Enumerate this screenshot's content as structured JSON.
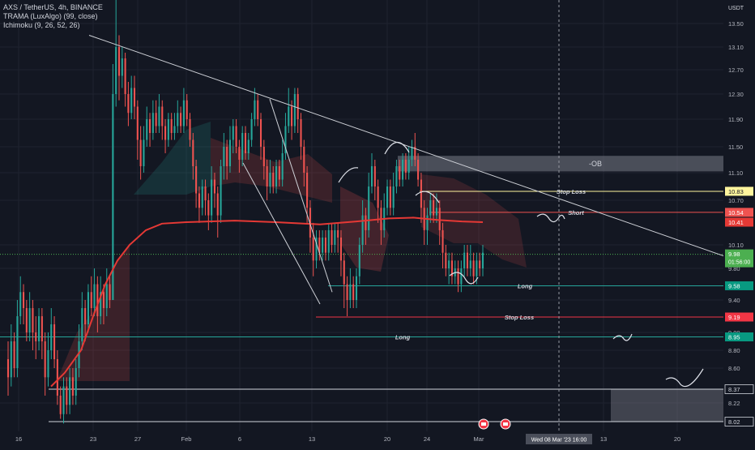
{
  "legend": {
    "symbol": "AXS / TetherUS, 4h, BINANCE",
    "indicator1": "TRAMA (LuxAlgo) (99, close)",
    "indicator2": "Ichimoku (9, 26, 52, 26)"
  },
  "colors": {
    "background": "#131722",
    "up": "#26a69a",
    "down": "#ef5350",
    "trama": "#e53935",
    "grid": "#1f2330",
    "trendline": "#cfd2d8"
  },
  "chart_data": {
    "type": "candlestick",
    "title": "AXS / TetherUS, 4h, BINANCE",
    "currency": "USDT",
    "ylim": [
      7.95,
      13.9
    ],
    "y_ticks": [
      13.5,
      13.1,
      12.7,
      12.3,
      11.9,
      11.5,
      11.1,
      10.7,
      10.1,
      9.8,
      9.4,
      9.0,
      8.8,
      8.6,
      8.22
    ],
    "x_ticks": [
      "16",
      "23",
      "27",
      "Feb",
      "6",
      "13",
      "20",
      "24",
      "Mar",
      "13",
      "20"
    ],
    "crosshair_date": "Wed 08 Mar '23   16:00",
    "price_badges": [
      {
        "value": "10.83",
        "kind": "stop",
        "color": "#fff59d",
        "text_color": "#131722"
      },
      {
        "value": "10.54",
        "kind": "short",
        "color": "#ef5350",
        "text_color": "#ffffff"
      },
      {
        "value": "10.41",
        "kind": "trama",
        "color": "#e53935",
        "text_color": "#ffffff"
      },
      {
        "value": "9.98",
        "kind": "last",
        "color": "#4caf50",
        "text_color": "#ffffff",
        "sub": "01:56:00"
      },
      {
        "value": "9.58",
        "kind": "long",
        "color": "#089981",
        "text_color": "#ffffff"
      },
      {
        "value": "9.19",
        "kind": "stop",
        "color": "#f23645",
        "text_color": "#ffffff"
      },
      {
        "value": "8.95",
        "kind": "long",
        "color": "#089981",
        "text_color": "#ffffff"
      },
      {
        "value": "8.37",
        "kind": "zone",
        "color": "#131722",
        "text_color": "#d1d4dc"
      },
      {
        "value": "8.02",
        "kind": "zone",
        "color": "#131722",
        "text_color": "#d1d4dc"
      }
    ],
    "annotations": [
      {
        "text": "-OB",
        "price": 11.24
      },
      {
        "text": "Stop Loss",
        "price": 10.83
      },
      {
        "text": "Short",
        "price": 10.54
      },
      {
        "text": "Long",
        "price": 9.58
      },
      {
        "text": "Stop Loss",
        "price": 9.19
      },
      {
        "text": "Long",
        "price": 8.95
      }
    ],
    "candles": [
      [
        8.7,
        8.5,
        8.9,
        8.3
      ],
      [
        8.5,
        8.9,
        9.1,
        8.4
      ],
      [
        8.9,
        8.6,
        9.0,
        8.5
      ],
      [
        8.6,
        9.2,
        9.4,
        8.5
      ],
      [
        9.2,
        9.5,
        9.7,
        9.1
      ],
      [
        9.5,
        9.3,
        9.6,
        9.1
      ],
      [
        9.3,
        9.0,
        9.4,
        8.9
      ],
      [
        9.0,
        9.3,
        9.5,
        8.9
      ],
      [
        9.3,
        9.0,
        9.4,
        8.8
      ],
      [
        9.0,
        8.9,
        9.2,
        8.7
      ],
      [
        8.9,
        9.2,
        9.3,
        8.8
      ],
      [
        9.2,
        8.9,
        9.3,
        8.7
      ],
      [
        8.9,
        8.5,
        9.0,
        8.3
      ],
      [
        8.5,
        8.8,
        9.0,
        8.4
      ],
      [
        8.8,
        9.1,
        9.3,
        8.7
      ],
      [
        9.1,
        8.7,
        9.2,
        8.6
      ],
      [
        8.7,
        8.3,
        8.8,
        8.2
      ],
      [
        8.3,
        8.1,
        8.4,
        8.05
      ],
      [
        8.1,
        8.4,
        8.5,
        8.0
      ],
      [
        8.4,
        8.2,
        8.5,
        8.1
      ],
      [
        8.2,
        8.5,
        8.6,
        8.1
      ],
      [
        8.5,
        8.3,
        8.6,
        8.2
      ],
      [
        8.3,
        8.6,
        8.7,
        8.2
      ],
      [
        8.6,
        8.9,
        9.1,
        8.5
      ],
      [
        8.9,
        9.3,
        9.5,
        8.8
      ],
      [
        9.3,
        9.1,
        9.4,
        8.9
      ],
      [
        9.1,
        9.5,
        9.6,
        9.0
      ],
      [
        9.5,
        9.3,
        9.7,
        9.2
      ],
      [
        9.3,
        9.6,
        9.8,
        9.2
      ],
      [
        9.6,
        9.2,
        9.7,
        9.0
      ],
      [
        9.2,
        9.5,
        9.7,
        9.1
      ],
      [
        9.5,
        9.3,
        9.6,
        9.1
      ],
      [
        9.3,
        9.6,
        9.8,
        9.2
      ],
      [
        9.6,
        9.4,
        9.7,
        9.3
      ],
      [
        9.4,
        12.3,
        12.8,
        9.4
      ],
      [
        12.3,
        13.1,
        13.9,
        12.1
      ],
      [
        13.1,
        12.6,
        13.3,
        12.2
      ],
      [
        12.6,
        12.9,
        13.1,
        12.4
      ],
      [
        12.9,
        12.3,
        13.0,
        12.1
      ],
      [
        12.3,
        12.0,
        12.5,
        11.8
      ],
      [
        12.0,
        12.4,
        12.6,
        11.9
      ],
      [
        12.4,
        12.1,
        12.6,
        11.9
      ],
      [
        12.1,
        11.6,
        12.2,
        11.3
      ],
      [
        11.6,
        11.2,
        11.8,
        11.0
      ],
      [
        11.2,
        11.6,
        11.8,
        11.1
      ],
      [
        11.6,
        11.9,
        12.1,
        11.5
      ],
      [
        11.9,
        11.7,
        12.0,
        11.5
      ],
      [
        11.7,
        12.0,
        12.2,
        11.6
      ],
      [
        12.0,
        11.8,
        12.2,
        11.7
      ],
      [
        11.8,
        12.1,
        12.3,
        11.7
      ],
      [
        12.1,
        11.8,
        12.2,
        11.6
      ],
      [
        11.8,
        11.6,
        11.9,
        11.4
      ],
      [
        11.6,
        11.9,
        12.0,
        11.5
      ],
      [
        11.9,
        11.7,
        12.0,
        11.6
      ],
      [
        11.7,
        11.8,
        12.0,
        11.6
      ],
      [
        11.8,
        12.0,
        12.2,
        11.7
      ],
      [
        12.0,
        11.8,
        12.1,
        11.7
      ],
      [
        11.8,
        12.2,
        12.4,
        11.7
      ],
      [
        12.2,
        11.9,
        12.3,
        11.8
      ],
      [
        11.9,
        11.6,
        12.0,
        11.5
      ],
      [
        11.6,
        11.2,
        11.7,
        11.0
      ],
      [
        11.2,
        10.8,
        11.3,
        10.6
      ],
      [
        10.8,
        10.6,
        10.9,
        10.4
      ],
      [
        10.6,
        10.9,
        11.0,
        10.5
      ],
      [
        10.9,
        10.7,
        11.0,
        10.5
      ],
      [
        10.7,
        10.5,
        10.8,
        10.3
      ],
      [
        10.5,
        11.0,
        11.2,
        10.4
      ],
      [
        11.0,
        10.8,
        11.1,
        10.6
      ],
      [
        10.8,
        10.5,
        10.9,
        10.2
      ],
      [
        10.5,
        11.2,
        11.3,
        10.4
      ],
      [
        11.2,
        11.5,
        11.7,
        11.0
      ],
      [
        11.5,
        11.2,
        11.6,
        11.0
      ],
      [
        11.2,
        11.6,
        11.8,
        11.1
      ],
      [
        11.6,
        11.8,
        11.9,
        11.4
      ],
      [
        11.8,
        11.5,
        11.9,
        11.4
      ],
      [
        11.5,
        11.3,
        11.6,
        11.1
      ],
      [
        11.3,
        11.7,
        11.8,
        11.2
      ],
      [
        11.7,
        11.4,
        11.8,
        11.3
      ],
      [
        11.4,
        11.6,
        11.7,
        11.3
      ],
      [
        11.6,
        11.9,
        12.0,
        11.5
      ],
      [
        11.9,
        12.2,
        12.4,
        11.8
      ],
      [
        12.2,
        11.9,
        12.3,
        11.8
      ],
      [
        11.9,
        11.5,
        12.0,
        11.3
      ],
      [
        11.5,
        11.2,
        11.6,
        11.0
      ],
      [
        11.2,
        10.9,
        11.3,
        10.7
      ],
      [
        10.9,
        11.1,
        11.3,
        10.8
      ],
      [
        11.1,
        10.9,
        11.2,
        10.8
      ],
      [
        10.9,
        11.2,
        11.3,
        10.8
      ],
      [
        11.2,
        11.0,
        11.3,
        10.9
      ],
      [
        11.0,
        11.4,
        11.6,
        10.9
      ],
      [
        11.4,
        11.8,
        12.0,
        11.3
      ],
      [
        11.8,
        12.1,
        12.4,
        11.7
      ],
      [
        12.1,
        11.8,
        12.2,
        11.6
      ],
      [
        11.8,
        12.3,
        12.4,
        11.7
      ],
      [
        12.3,
        11.9,
        12.4,
        11.7
      ],
      [
        11.9,
        11.5,
        12.0,
        11.3
      ],
      [
        11.5,
        11.1,
        11.6,
        10.9
      ],
      [
        11.1,
        10.6,
        11.2,
        10.4
      ],
      [
        10.6,
        10.2,
        10.7,
        10.0
      ],
      [
        10.2,
        9.9,
        10.4,
        9.7
      ],
      [
        9.9,
        10.2,
        10.3,
        9.8
      ],
      [
        10.2,
        10.0,
        10.3,
        9.9
      ],
      [
        10.0,
        10.2,
        10.3,
        9.9
      ],
      [
        10.2,
        10.0,
        10.3,
        9.9
      ],
      [
        10.0,
        10.3,
        10.4,
        9.9
      ],
      [
        10.3,
        10.1,
        10.4,
        10.0
      ],
      [
        10.1,
        10.3,
        10.4,
        10.0
      ],
      [
        10.3,
        10.2,
        10.4,
        10.0
      ],
      [
        10.2,
        9.9,
        10.3,
        9.7
      ],
      [
        9.9,
        9.6,
        10.0,
        9.3
      ],
      [
        9.6,
        9.4,
        9.7,
        9.2
      ],
      [
        9.4,
        9.6,
        9.8,
        9.3
      ],
      [
        9.6,
        9.4,
        9.7,
        9.3
      ],
      [
        9.4,
        9.7,
        9.8,
        9.3
      ],
      [
        9.7,
        10.1,
        10.2,
        9.6
      ],
      [
        10.1,
        10.5,
        10.7,
        10.0
      ],
      [
        10.5,
        10.3,
        10.6,
        10.1
      ],
      [
        10.3,
        10.9,
        11.1,
        10.2
      ],
      [
        10.9,
        11.2,
        11.4,
        10.8
      ],
      [
        11.2,
        10.9,
        11.3,
        10.7
      ],
      [
        10.9,
        10.6,
        11.0,
        10.4
      ],
      [
        10.6,
        10.3,
        10.7,
        10.1
      ],
      [
        10.3,
        10.6,
        10.8,
        10.2
      ],
      [
        10.6,
        10.9,
        11.0,
        10.5
      ],
      [
        10.9,
        10.6,
        11.0,
        10.5
      ],
      [
        10.6,
        10.9,
        11.1,
        10.5
      ],
      [
        10.9,
        11.2,
        11.3,
        10.8
      ],
      [
        11.2,
        11.0,
        11.3,
        10.9
      ],
      [
        11.0,
        11.3,
        11.4,
        10.9
      ],
      [
        11.3,
        11.1,
        11.4,
        11.0
      ],
      [
        11.1,
        11.3,
        11.5,
        11.0
      ],
      [
        11.3,
        11.5,
        11.6,
        11.2
      ],
      [
        11.5,
        11.3,
        11.7,
        11.2
      ],
      [
        11.3,
        11.0,
        11.4,
        10.9
      ],
      [
        11.0,
        10.6,
        11.1,
        10.4
      ],
      [
        10.6,
        10.3,
        10.7,
        10.1
      ],
      [
        10.3,
        10.5,
        10.6,
        10.1
      ],
      [
        10.5,
        10.7,
        10.8,
        10.4
      ],
      [
        10.7,
        10.5,
        10.8,
        10.4
      ],
      [
        10.5,
        10.6,
        10.8,
        10.4
      ],
      [
        10.6,
        10.3,
        10.7,
        10.1
      ],
      [
        10.3,
        10.0,
        10.4,
        9.8
      ],
      [
        10.0,
        9.8,
        10.1,
        9.7
      ],
      [
        9.8,
        9.9,
        10.0,
        9.6
      ],
      [
        9.9,
        9.7,
        10.0,
        9.6
      ],
      [
        9.7,
        9.8,
        9.9,
        9.6
      ],
      [
        9.8,
        9.6,
        9.9,
        9.5
      ],
      [
        9.6,
        9.8,
        9.9,
        9.5
      ],
      [
        9.8,
        10.0,
        10.1,
        9.7
      ],
      [
        10.0,
        9.8,
        10.1,
        9.7
      ],
      [
        9.8,
        9.9,
        10.1,
        9.7
      ],
      [
        9.9,
        9.7,
        10.0,
        9.6
      ],
      [
        9.7,
        9.9,
        10.0,
        9.6
      ],
      [
        9.9,
        9.8,
        10.0,
        9.7
      ],
      [
        9.8,
        10.0,
        10.1,
        9.7
      ]
    ],
    "trama_line": [
      {
        "x": 63,
        "y": 8.4
      },
      {
        "x": 80,
        "y": 8.55
      },
      {
        "x": 100,
        "y": 8.8
      },
      {
        "x": 115,
        "y": 9.2
      },
      {
        "x": 130,
        "y": 9.6
      },
      {
        "x": 145,
        "y": 9.9
      },
      {
        "x": 160,
        "y": 10.1
      },
      {
        "x": 180,
        "y": 10.3
      },
      {
        "x": 200,
        "y": 10.39
      },
      {
        "x": 230,
        "y": 10.41
      },
      {
        "x": 290,
        "y": 10.43
      },
      {
        "x": 340,
        "y": 10.41
      },
      {
        "x": 395,
        "y": 10.38
      },
      {
        "x": 440,
        "y": 10.42
      },
      {
        "x": 480,
        "y": 10.46
      },
      {
        "x": 510,
        "y": 10.47
      },
      {
        "x": 540,
        "y": 10.44
      },
      {
        "x": 570,
        "y": 10.42
      },
      {
        "x": 596,
        "y": 10.41
      }
    ]
  }
}
